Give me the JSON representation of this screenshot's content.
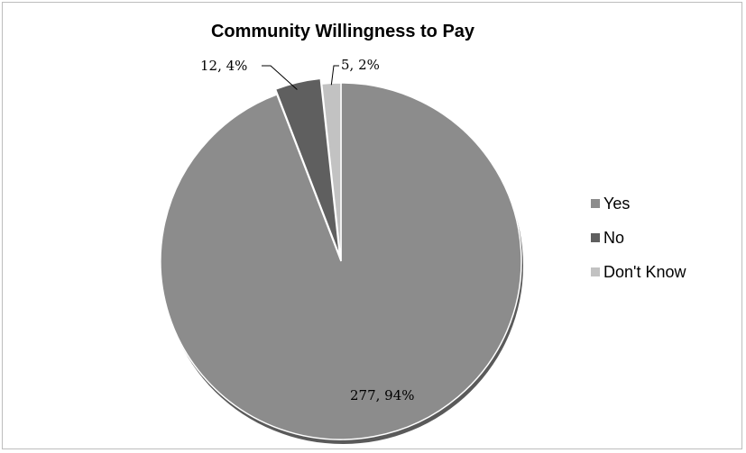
{
  "chart_data": {
    "type": "pie",
    "title": "Community Willingness to Pay",
    "slices": [
      {
        "name": "Yes",
        "value": 277,
        "label": "277, 94%",
        "color": "#8c8c8c"
      },
      {
        "name": "No",
        "value": 12,
        "label": "12, 4%",
        "color": "#5f5f5f"
      },
      {
        "name": "Don't Know",
        "value": 5,
        "label": "5, 2%",
        "color": "#c2c2c2"
      }
    ],
    "legend_position": "right"
  }
}
